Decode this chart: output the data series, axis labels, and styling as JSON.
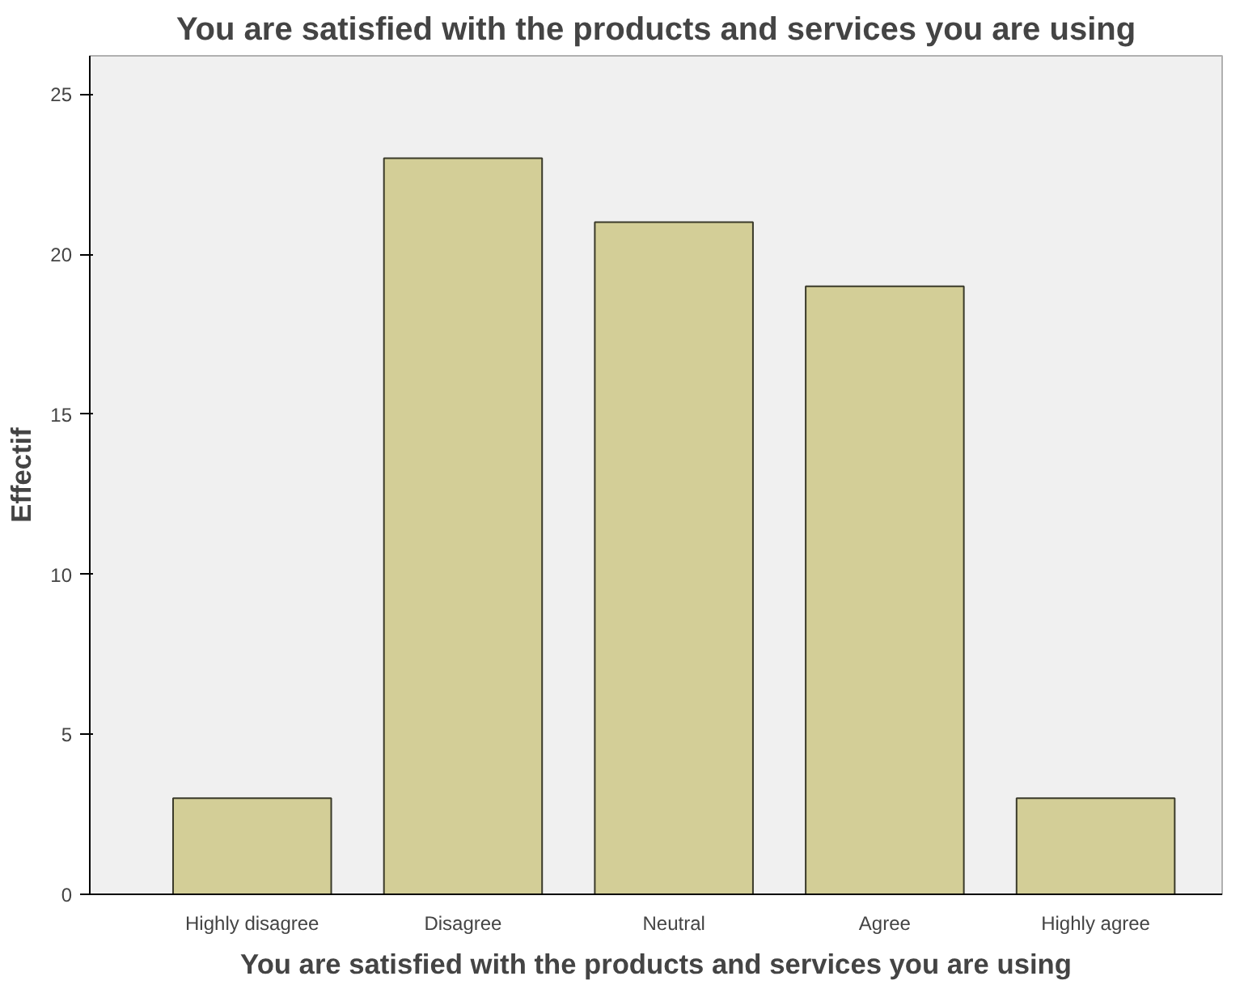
{
  "chart_data": {
    "type": "bar",
    "title": "You are satisfied with the products and services you are using",
    "xlabel": "You are satisfied with the products and services you are using",
    "ylabel": "Effectif",
    "categories": [
      "Highly disagree",
      "Disagree",
      "Neutral",
      "Agree",
      "Highly agree"
    ],
    "values": [
      3,
      23,
      21,
      19,
      3
    ],
    "color": "#d3ce97",
    "ylim": [
      0,
      26.2
    ],
    "yticks": [
      0,
      5,
      10,
      15,
      20,
      25
    ],
    "grid": false
  }
}
